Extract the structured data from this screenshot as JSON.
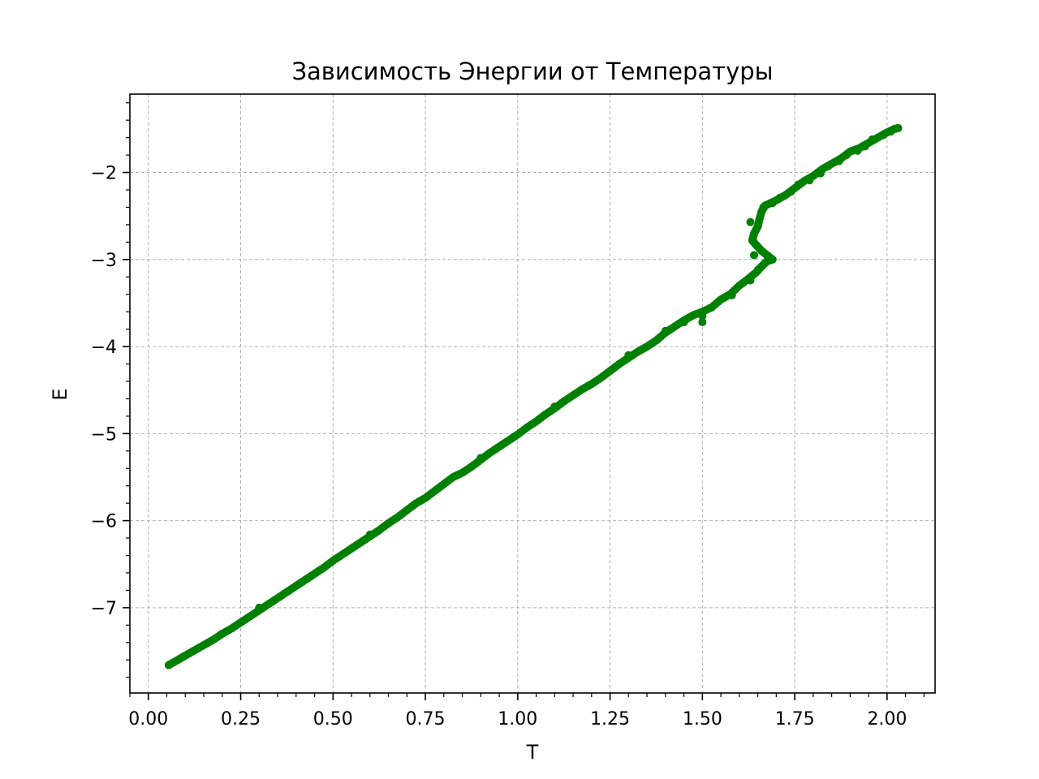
{
  "chart_data": {
    "type": "scatter",
    "title": "Зависимость Энергии от Температуры",
    "xlabel": "T",
    "ylabel": "E",
    "xlim": [
      -0.05,
      2.13
    ],
    "ylim": [
      -7.98,
      -1.1
    ],
    "x_ticks": [
      {
        "value": 0.0,
        "label": "0.00"
      },
      {
        "value": 0.25,
        "label": "0.25"
      },
      {
        "value": 0.5,
        "label": "0.50"
      },
      {
        "value": 0.75,
        "label": "0.75"
      },
      {
        "value": 1.0,
        "label": "1.00"
      },
      {
        "value": 1.25,
        "label": "1.25"
      },
      {
        "value": 1.5,
        "label": "1.50"
      },
      {
        "value": 1.75,
        "label": "1.75"
      },
      {
        "value": 2.0,
        "label": "2.00"
      }
    ],
    "y_ticks": [
      {
        "value": -7,
        "label": "−7"
      },
      {
        "value": -6,
        "label": "−6"
      },
      {
        "value": -5,
        "label": "−5"
      },
      {
        "value": -4,
        "label": "−4"
      },
      {
        "value": -3,
        "label": "−3"
      },
      {
        "value": -2,
        "label": "−2"
      }
    ],
    "x_minor_step": 0.05,
    "y_minor_step": 0.2,
    "grid": true,
    "marker_color": "#008000",
    "points": [
      [
        0.055,
        -7.66
      ],
      [
        0.08,
        -7.6
      ],
      [
        0.1,
        -7.55
      ],
      [
        0.125,
        -7.49
      ],
      [
        0.15,
        -7.43
      ],
      [
        0.175,
        -7.37
      ],
      [
        0.2,
        -7.3
      ],
      [
        0.225,
        -7.24
      ],
      [
        0.25,
        -7.17
      ],
      [
        0.275,
        -7.1
      ],
      [
        0.3,
        -7.03
      ],
      [
        0.325,
        -6.96
      ],
      [
        0.35,
        -6.89
      ],
      [
        0.375,
        -6.82
      ],
      [
        0.4,
        -6.75
      ],
      [
        0.425,
        -6.68
      ],
      [
        0.45,
        -6.61
      ],
      [
        0.475,
        -6.54
      ],
      [
        0.5,
        -6.46
      ],
      [
        0.525,
        -6.39
      ],
      [
        0.55,
        -6.32
      ],
      [
        0.575,
        -6.25
      ],
      [
        0.6,
        -6.18
      ],
      [
        0.625,
        -6.11
      ],
      [
        0.65,
        -6.03
      ],
      [
        0.675,
        -5.96
      ],
      [
        0.7,
        -5.88
      ],
      [
        0.725,
        -5.8
      ],
      [
        0.75,
        -5.74
      ],
      [
        0.775,
        -5.66
      ],
      [
        0.8,
        -5.58
      ],
      [
        0.825,
        -5.5
      ],
      [
        0.85,
        -5.45
      ],
      [
        0.875,
        -5.38
      ],
      [
        0.9,
        -5.3
      ],
      [
        0.925,
        -5.22
      ],
      [
        0.95,
        -5.15
      ],
      [
        0.975,
        -5.08
      ],
      [
        1.0,
        -5.01
      ],
      [
        1.025,
        -4.93
      ],
      [
        1.05,
        -4.86
      ],
      [
        1.075,
        -4.78
      ],
      [
        1.1,
        -4.71
      ],
      [
        1.125,
        -4.63
      ],
      [
        1.15,
        -4.56
      ],
      [
        1.175,
        -4.49
      ],
      [
        1.2,
        -4.43
      ],
      [
        1.225,
        -4.36
      ],
      [
        1.25,
        -4.28
      ],
      [
        1.275,
        -4.2
      ],
      [
        1.3,
        -4.13
      ],
      [
        1.325,
        -4.06
      ],
      [
        1.35,
        -4.0
      ],
      [
        1.375,
        -3.93
      ],
      [
        1.4,
        -3.84
      ],
      [
        1.425,
        -3.77
      ],
      [
        1.45,
        -3.7
      ],
      [
        1.475,
        -3.64
      ],
      [
        1.5,
        -3.6
      ],
      [
        1.525,
        -3.55
      ],
      [
        1.55,
        -3.46
      ],
      [
        1.575,
        -3.4
      ],
      [
        1.6,
        -3.3
      ],
      [
        1.625,
        -3.22
      ],
      [
        1.645,
        -3.15
      ],
      [
        1.66,
        -3.08
      ],
      [
        1.675,
        -3.02
      ],
      [
        1.69,
        -3.0
      ],
      [
        1.675,
        -2.95
      ],
      [
        1.66,
        -2.9
      ],
      [
        1.645,
        -2.83
      ],
      [
        1.635,
        -2.78
      ],
      [
        1.64,
        -2.7
      ],
      [
        1.65,
        -2.62
      ],
      [
        1.655,
        -2.53
      ],
      [
        1.66,
        -2.45
      ],
      [
        1.67,
        -2.38
      ],
      [
        1.7,
        -2.32
      ],
      [
        1.725,
        -2.26
      ],
      [
        1.75,
        -2.18
      ],
      [
        1.775,
        -2.1
      ],
      [
        1.8,
        -2.04
      ],
      [
        1.825,
        -1.96
      ],
      [
        1.85,
        -1.9
      ],
      [
        1.875,
        -1.84
      ],
      [
        1.9,
        -1.76
      ],
      [
        1.925,
        -1.72
      ],
      [
        1.95,
        -1.66
      ],
      [
        1.975,
        -1.6
      ],
      [
        2.0,
        -1.54
      ],
      [
        2.02,
        -1.5
      ],
      [
        2.03,
        -1.49
      ],
      [
        0.3,
        -7.0
      ],
      [
        0.6,
        -6.16
      ],
      [
        0.9,
        -5.28
      ],
      [
        1.1,
        -4.69
      ],
      [
        1.3,
        -4.1
      ],
      [
        1.4,
        -3.82
      ],
      [
        1.5,
        -3.65
      ],
      [
        1.52,
        -3.56
      ],
      [
        1.58,
        -3.41
      ],
      [
        1.63,
        -3.24
      ],
      [
        1.65,
        -3.12
      ],
      [
        1.64,
        -2.95
      ],
      [
        1.63,
        -2.57
      ],
      [
        1.665,
        -2.4
      ],
      [
        1.69,
        -2.35
      ],
      [
        1.71,
        -2.29
      ],
      [
        1.74,
        -2.22
      ],
      [
        1.76,
        -2.14
      ],
      [
        1.79,
        -2.09
      ],
      [
        1.82,
        -2.01
      ],
      [
        1.84,
        -1.93
      ],
      [
        1.87,
        -1.87
      ],
      [
        1.89,
        -1.8
      ],
      [
        1.92,
        -1.75
      ],
      [
        1.94,
        -1.7
      ],
      [
        1.96,
        -1.62
      ],
      [
        1.99,
        -1.57
      ],
      [
        2.01,
        -1.53
      ],
      [
        1.5,
        -3.72
      ],
      [
        1.45,
        -3.72
      ]
    ]
  }
}
